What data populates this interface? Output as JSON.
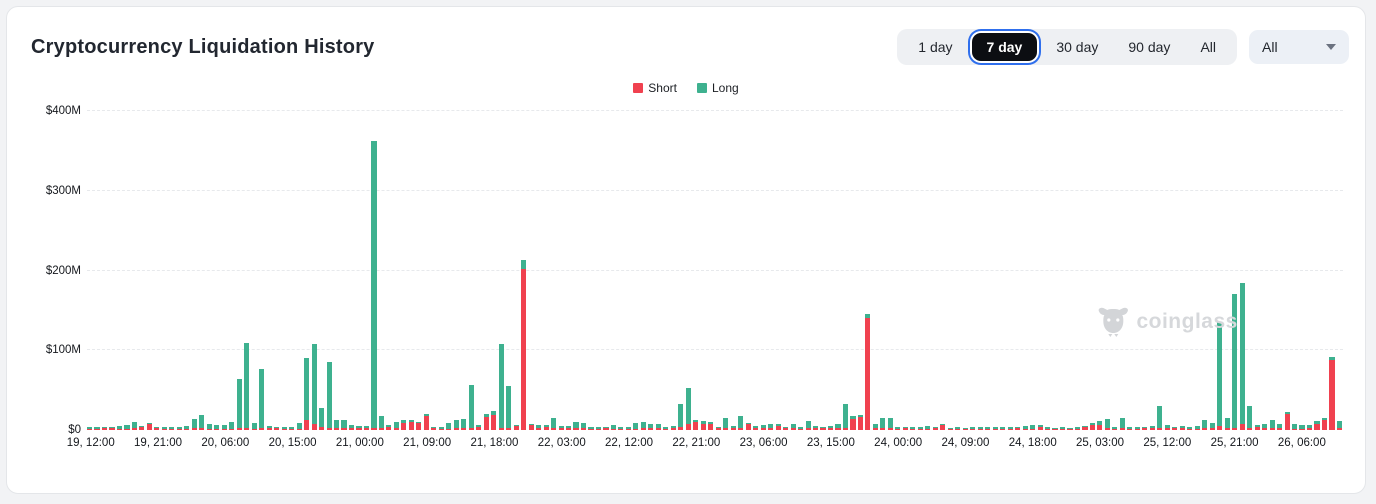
{
  "header": {
    "title": "Cryptocurrency Liquidation History"
  },
  "controls": {
    "ranges": [
      {
        "label": "1 day",
        "selected": false
      },
      {
        "label": "7 day",
        "selected": true
      },
      {
        "label": "30 day",
        "selected": false
      },
      {
        "label": "90 day",
        "selected": false
      },
      {
        "label": "All",
        "selected": false
      }
    ],
    "dropdown": {
      "value": "All",
      "icon": "chevron-down-icon"
    }
  },
  "legend": [
    {
      "label": "Short",
      "color": "#f0414f"
    },
    {
      "label": "Long",
      "color": "#3eb18f"
    }
  ],
  "watermark": {
    "text": "coinglass",
    "icon": "bull-icon",
    "color": "#d6d8db"
  },
  "chart_data": {
    "type": "bar",
    "stacked": true,
    "title": "Cryptocurrency Liquidation History",
    "unit": "USD millions",
    "ylim": [
      0,
      400
    ],
    "yticks": [
      0,
      100,
      200,
      300,
      400
    ],
    "ytick_labels": [
      "$0",
      "$100M",
      "$200M",
      "$300M",
      "$400M"
    ],
    "grid": "dashed horizontal",
    "legend_position": "top center",
    "x_interval_hours": 1,
    "xtick_every": 9,
    "xtick_labels": [
      "19, 12:00",
      "19, 21:00",
      "20, 06:00",
      "20, 15:00",
      "21, 00:00",
      "21, 09:00",
      "21, 18:00",
      "22, 03:00",
      "22, 12:00",
      "22, 21:00",
      "23, 06:00",
      "23, 15:00",
      "24, 00:00",
      "24, 09:00",
      "24, 18:00",
      "25, 03:00",
      "25, 12:00",
      "25, 21:00",
      "26, 06:00"
    ],
    "series": [
      {
        "name": "Short",
        "color": "#f0414f",
        "values": [
          1,
          1,
          3,
          3,
          1,
          1,
          2,
          4,
          8,
          2,
          1,
          1,
          1,
          1,
          2,
          2,
          1,
          1,
          1,
          1,
          2,
          2,
          1,
          2,
          3,
          2,
          1,
          1,
          1,
          13,
          8,
          4,
          2,
          2,
          2,
          2,
          2,
          2,
          3,
          2,
          4,
          2,
          9,
          10,
          9,
          17,
          2,
          1,
          1,
          2,
          2,
          2,
          4,
          16,
          19,
          3,
          2,
          5,
          202,
          6,
          2,
          4,
          2,
          3,
          2,
          2,
          2,
          1,
          1,
          2,
          1,
          1,
          1,
          1,
          2,
          2,
          2,
          1,
          2,
          4,
          8,
          10,
          8,
          8,
          2,
          3,
          2,
          3,
          7,
          2,
          2,
          2,
          5,
          2,
          2,
          1,
          2,
          2,
          2,
          2,
          2,
          3,
          14,
          16,
          140,
          2,
          2,
          2,
          1,
          3,
          1,
          1,
          1,
          2,
          6,
          1,
          1,
          1,
          1,
          1,
          1,
          1,
          1,
          1,
          3,
          1,
          1,
          4,
          1,
          1,
          1,
          1,
          1,
          4,
          6,
          6,
          2,
          1,
          2,
          1,
          1,
          2,
          2,
          2,
          2,
          2,
          2,
          1,
          1,
          2,
          2,
          5,
          2,
          3,
          7,
          3,
          4,
          3,
          2,
          2,
          20,
          1,
          1,
          2,
          8,
          13,
          88,
          2
        ]
      },
      {
        "name": "Long",
        "color": "#3eb18f",
        "values": [
          3,
          3,
          1,
          1,
          4,
          5,
          8,
          1,
          1,
          1,
          2,
          2,
          3,
          4,
          12,
          17,
          6,
          5,
          5,
          9,
          62,
          107,
          7,
          74,
          2,
          2,
          2,
          2,
          8,
          77,
          100,
          24,
          83,
          10,
          11,
          4,
          3,
          3,
          360,
          16,
          2,
          8,
          3,
          3,
          1,
          3,
          2,
          3,
          7,
          10,
          12,
          55,
          2,
          4,
          5,
          105,
          53,
          1,
          11,
          2,
          4,
          2,
          13,
          2,
          3,
          8,
          7,
          2,
          2,
          1,
          5,
          2,
          2,
          7,
          8,
          6,
          5,
          2,
          3,
          28,
          45,
          3,
          3,
          2,
          2,
          12,
          3,
          15,
          2,
          3,
          4,
          6,
          2,
          2,
          5,
          2,
          9,
          3,
          2,
          3,
          5,
          30,
          4,
          3,
          5,
          5,
          13,
          13,
          2,
          1,
          2,
          2,
          4,
          2,
          2,
          1,
          2,
          1,
          2,
          3,
          2,
          3,
          3,
          2,
          1,
          4,
          5,
          2,
          2,
          1,
          2,
          1,
          2,
          1,
          3,
          5,
          12,
          2,
          13,
          2,
          2,
          1,
          3,
          28,
          4,
          2,
          3,
          3,
          4,
          11,
          7,
          130,
          13,
          168,
          177,
          27,
          2,
          4,
          11,
          6,
          2,
          6,
          5,
          4,
          3,
          2,
          3,
          9
        ]
      }
    ]
  }
}
